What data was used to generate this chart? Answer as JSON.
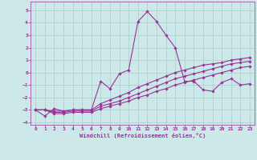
{
  "xlabel": "Windchill (Refroidissement éolien,°C)",
  "bg_color": "#cce8e8",
  "grid_color": "#aacccc",
  "line_color": "#993399",
  "xlim": [
    -0.5,
    23.5
  ],
  "ylim": [
    -4.2,
    5.7
  ],
  "xticks": [
    0,
    1,
    2,
    3,
    4,
    5,
    6,
    7,
    8,
    9,
    10,
    11,
    12,
    13,
    14,
    15,
    16,
    17,
    18,
    19,
    20,
    21,
    22,
    23
  ],
  "yticks": [
    -4,
    -3,
    -2,
    -1,
    0,
    1,
    2,
    3,
    4,
    5
  ],
  "series_x": [
    0,
    1,
    2,
    3,
    4,
    5,
    6,
    7,
    8,
    9,
    10,
    11,
    12,
    13,
    14,
    15,
    16,
    17,
    18,
    19,
    20,
    21,
    22,
    23
  ],
  "series": [
    [
      -3.0,
      -3.5,
      -2.9,
      -3.1,
      -3.0,
      -3.0,
      -3.0,
      -0.7,
      -1.3,
      -0.1,
      0.2,
      4.1,
      4.9,
      4.1,
      3.0,
      2.0,
      -0.7,
      -0.7,
      -1.4,
      -1.5,
      -0.8,
      -0.5,
      -1.0,
      -0.9
    ],
    [
      -3.0,
      -3.0,
      -3.1,
      -3.1,
      -3.0,
      -3.0,
      -3.0,
      -2.5,
      -2.2,
      -1.9,
      -1.6,
      -1.2,
      -0.9,
      -0.6,
      -0.3,
      0.0,
      0.2,
      0.4,
      0.6,
      0.7,
      0.8,
      1.0,
      1.1,
      1.2
    ],
    [
      -3.0,
      -3.0,
      -3.2,
      -3.2,
      -3.1,
      -3.1,
      -3.1,
      -2.7,
      -2.5,
      -2.3,
      -2.0,
      -1.7,
      -1.4,
      -1.1,
      -0.8,
      -0.5,
      -0.3,
      -0.1,
      0.1,
      0.3,
      0.5,
      0.7,
      0.8,
      0.9
    ],
    [
      -3.0,
      -3.0,
      -3.3,
      -3.3,
      -3.2,
      -3.2,
      -3.2,
      -2.9,
      -2.7,
      -2.5,
      -2.3,
      -2.0,
      -1.8,
      -1.5,
      -1.3,
      -1.0,
      -0.8,
      -0.6,
      -0.4,
      -0.2,
      0.0,
      0.2,
      0.4,
      0.5
    ]
  ]
}
